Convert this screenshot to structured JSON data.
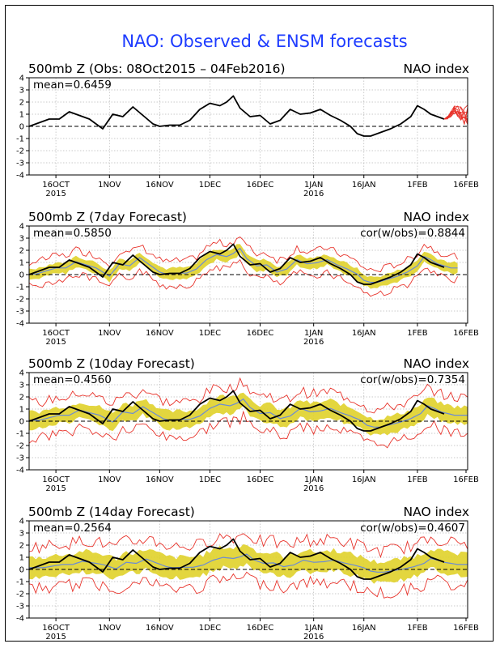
{
  "main_title": "NAO: Observed & ENSM forecasts",
  "colors": {
    "title": "#1e3cff",
    "observed": "#000000",
    "ensemble": "#e0d22a",
    "spread": "#e8342c",
    "ens_mean": "#6b8bd6"
  },
  "chart_data": [
    {
      "type": "line",
      "title": "500mb Z (Obs: 08Oct2015 – 04Feb2016)",
      "right_label": "NAO index",
      "stat_left": "mean=0.6459",
      "stat_right": "",
      "ylim": [
        -4,
        4
      ],
      "yticks": [
        "4",
        "3",
        "2",
        "1",
        "0",
        "-1",
        "-2",
        "-3",
        "-4"
      ],
      "x_ticks": [
        {
          "label": "16OCT",
          "sub": "2015",
          "day": 8
        },
        {
          "label": "1NOV",
          "sub": "",
          "day": 24
        },
        {
          "label": "16NOV",
          "sub": "",
          "day": 39
        },
        {
          "label": "1DEC",
          "sub": "",
          "day": 54
        },
        {
          "label": "16DEC",
          "sub": "",
          "day": 69
        },
        {
          "label": "1JAN",
          "sub": "2016",
          "day": 85
        },
        {
          "label": "16JAN",
          "sub": "",
          "day": 100
        },
        {
          "label": "1FEB",
          "sub": "",
          "day": 116
        },
        {
          "label": "16FEB",
          "sub": "",
          "day": 131
        }
      ],
      "xlim": [
        0,
        131
      ],
      "observed": [
        [
          0,
          0
        ],
        [
          3,
          0.3
        ],
        [
          6,
          0.6
        ],
        [
          9,
          0.6
        ],
        [
          12,
          1.2
        ],
        [
          15,
          0.9
        ],
        [
          18,
          0.6
        ],
        [
          20,
          0.2
        ],
        [
          22,
          -0.2
        ],
        [
          25,
          1.0
        ],
        [
          28,
          0.8
        ],
        [
          31,
          1.6
        ],
        [
          34,
          0.9
        ],
        [
          37,
          0.2
        ],
        [
          39,
          0.0
        ],
        [
          42,
          0.1
        ],
        [
          45,
          0.1
        ],
        [
          48,
          0.5
        ],
        [
          51,
          1.4
        ],
        [
          54,
          1.9
        ],
        [
          57,
          1.7
        ],
        [
          59,
          2.0
        ],
        [
          61,
          2.5
        ],
        [
          63,
          1.5
        ],
        [
          66,
          0.8
        ],
        [
          69,
          0.9
        ],
        [
          72,
          0.2
        ],
        [
          75,
          0.5
        ],
        [
          78,
          1.4
        ],
        [
          81,
          1.0
        ],
        [
          84,
          1.1
        ],
        [
          87,
          1.4
        ],
        [
          90,
          0.9
        ],
        [
          93,
          0.5
        ],
        [
          96,
          0.0
        ],
        [
          98,
          -0.6
        ],
        [
          100,
          -0.8
        ],
        [
          102,
          -0.8
        ],
        [
          105,
          -0.5
        ],
        [
          108,
          -0.2
        ],
        [
          111,
          0.2
        ],
        [
          114,
          0.8
        ],
        [
          116,
          1.7
        ],
        [
          118,
          1.4
        ],
        [
          120,
          1.0
        ],
        [
          123,
          0.7
        ],
        [
          124,
          0.6
        ]
      ],
      "forecast": {
        "start": 124,
        "end": 131,
        "members": 10,
        "base": [
          0.6,
          0.7,
          1.0,
          1.3,
          1.2,
          1.1,
          0.8,
          0.9
        ]
      }
    },
    {
      "type": "line",
      "title": "500mb Z (7day Forecast)",
      "right_label": "NAO index",
      "stat_left": "mean=0.5850",
      "stat_right": "cor(w/obs)=0.8844",
      "ylim": [
        -4,
        4
      ],
      "yticks": [
        "4",
        "3",
        "2",
        "1",
        "0",
        "-1",
        "-2",
        "-3",
        "-4"
      ],
      "x_ticks": [
        {
          "label": "16OCT",
          "sub": "2015",
          "day": 8
        },
        {
          "label": "1NOV",
          "sub": "",
          "day": 24
        },
        {
          "label": "16NOV",
          "sub": "",
          "day": 39
        },
        {
          "label": "1DEC",
          "sub": "",
          "day": 54
        },
        {
          "label": "16DEC",
          "sub": "",
          "day": 69
        },
        {
          "label": "1JAN",
          "sub": "2016",
          "day": 85
        },
        {
          "label": "16JAN",
          "sub": "",
          "day": 100
        },
        {
          "label": "1FEB",
          "sub": "",
          "day": 116
        },
        {
          "label": "16FEB",
          "sub": "",
          "day": 131
        }
      ],
      "xlim": [
        0,
        131
      ],
      "observed": [
        [
          0,
          0
        ],
        [
          3,
          0.3
        ],
        [
          6,
          0.6
        ],
        [
          9,
          0.6
        ],
        [
          12,
          1.2
        ],
        [
          15,
          0.9
        ],
        [
          18,
          0.6
        ],
        [
          20,
          0.2
        ],
        [
          22,
          -0.2
        ],
        [
          25,
          1.0
        ],
        [
          28,
          0.8
        ],
        [
          31,
          1.6
        ],
        [
          34,
          0.9
        ],
        [
          37,
          0.2
        ],
        [
          39,
          0.0
        ],
        [
          42,
          0.1
        ],
        [
          45,
          0.1
        ],
        [
          48,
          0.5
        ],
        [
          51,
          1.4
        ],
        [
          54,
          1.9
        ],
        [
          57,
          1.7
        ],
        [
          59,
          2.0
        ],
        [
          61,
          2.5
        ],
        [
          63,
          1.5
        ],
        [
          66,
          0.8
        ],
        [
          69,
          0.9
        ],
        [
          72,
          0.2
        ],
        [
          75,
          0.5
        ],
        [
          78,
          1.4
        ],
        [
          81,
          1.0
        ],
        [
          84,
          1.1
        ],
        [
          87,
          1.4
        ],
        [
          90,
          0.9
        ],
        [
          93,
          0.5
        ],
        [
          96,
          0.0
        ],
        [
          98,
          -0.6
        ],
        [
          100,
          -0.8
        ],
        [
          102,
          -0.8
        ],
        [
          105,
          -0.5
        ],
        [
          108,
          -0.2
        ],
        [
          111,
          0.2
        ],
        [
          114,
          0.8
        ],
        [
          116,
          1.7
        ],
        [
          118,
          1.4
        ],
        [
          120,
          1.0
        ],
        [
          123,
          0.7
        ],
        [
          124,
          0.6
        ]
      ],
      "ensemble": {
        "start": 0,
        "end": 128,
        "lag": 2,
        "damp": 0.85,
        "band": 0.45,
        "outer": 1.0
      }
    },
    {
      "type": "line",
      "title": "500mb Z (10day Forecast)",
      "right_label": "NAO index",
      "stat_left": "mean=0.4560",
      "stat_right": "cor(w/obs)=0.7354",
      "ylim": [
        -4,
        4
      ],
      "yticks": [
        "4",
        "3",
        "2",
        "1",
        "0",
        "-1",
        "-2",
        "-3",
        "-4"
      ],
      "x_ticks": [
        {
          "label": "16OCT",
          "sub": "2015",
          "day": 8
        },
        {
          "label": "1NOV",
          "sub": "",
          "day": 24
        },
        {
          "label": "16NOV",
          "sub": "",
          "day": 39
        },
        {
          "label": "1DEC",
          "sub": "",
          "day": 54
        },
        {
          "label": "16DEC",
          "sub": "",
          "day": 69
        },
        {
          "label": "1JAN",
          "sub": "2016",
          "day": 85
        },
        {
          "label": "16JAN",
          "sub": "",
          "day": 100
        },
        {
          "label": "1FEB",
          "sub": "",
          "day": 116
        },
        {
          "label": "16FEB",
          "sub": "",
          "day": 131
        }
      ],
      "xlim": [
        0,
        131
      ],
      "observed": [
        [
          0,
          0
        ],
        [
          3,
          0.3
        ],
        [
          6,
          0.6
        ],
        [
          9,
          0.6
        ],
        [
          12,
          1.2
        ],
        [
          15,
          0.9
        ],
        [
          18,
          0.6
        ],
        [
          20,
          0.2
        ],
        [
          22,
          -0.2
        ],
        [
          25,
          1.0
        ],
        [
          28,
          0.8
        ],
        [
          31,
          1.6
        ],
        [
          34,
          0.9
        ],
        [
          37,
          0.2
        ],
        [
          39,
          0.0
        ],
        [
          42,
          0.1
        ],
        [
          45,
          0.1
        ],
        [
          48,
          0.5
        ],
        [
          51,
          1.4
        ],
        [
          54,
          1.9
        ],
        [
          57,
          1.7
        ],
        [
          59,
          2.0
        ],
        [
          61,
          2.5
        ],
        [
          63,
          1.5
        ],
        [
          66,
          0.8
        ],
        [
          69,
          0.9
        ],
        [
          72,
          0.2
        ],
        [
          75,
          0.5
        ],
        [
          78,
          1.4
        ],
        [
          81,
          1.0
        ],
        [
          84,
          1.1
        ],
        [
          87,
          1.4
        ],
        [
          90,
          0.9
        ],
        [
          93,
          0.5
        ],
        [
          96,
          0.0
        ],
        [
          98,
          -0.6
        ],
        [
          100,
          -0.8
        ],
        [
          102,
          -0.8
        ],
        [
          105,
          -0.5
        ],
        [
          108,
          -0.2
        ],
        [
          111,
          0.2
        ],
        [
          114,
          0.8
        ],
        [
          116,
          1.7
        ],
        [
          118,
          1.4
        ],
        [
          120,
          1.0
        ],
        [
          123,
          0.7
        ],
        [
          124,
          0.6
        ]
      ],
      "ensemble": {
        "start": 0,
        "end": 131,
        "lag": 3,
        "damp": 0.7,
        "band": 0.7,
        "outer": 1.45
      }
    },
    {
      "type": "line",
      "title": "500mb Z (14day Forecast)",
      "right_label": "NAO index",
      "stat_left": "mean=0.2564",
      "stat_right": "cor(w/obs)=0.4607",
      "ylim": [
        -4,
        4
      ],
      "yticks": [
        "4",
        "3",
        "2",
        "1",
        "0",
        "-1",
        "-2",
        "-3",
        "-4"
      ],
      "x_ticks": [
        {
          "label": "16OCT",
          "sub": "2015",
          "day": 8
        },
        {
          "label": "1NOV",
          "sub": "",
          "day": 24
        },
        {
          "label": "16NOV",
          "sub": "",
          "day": 39
        },
        {
          "label": "1DEC",
          "sub": "",
          "day": 54
        },
        {
          "label": "16DEC",
          "sub": "",
          "day": 69
        },
        {
          "label": "1JAN",
          "sub": "2016",
          "day": 85
        },
        {
          "label": "16JAN",
          "sub": "",
          "day": 100
        },
        {
          "label": "1FEB",
          "sub": "",
          "day": 116
        },
        {
          "label": "16FEB",
          "sub": "",
          "day": 131
        }
      ],
      "xlim": [
        0,
        131
      ],
      "observed": [
        [
          0,
          0
        ],
        [
          3,
          0.3
        ],
        [
          6,
          0.6
        ],
        [
          9,
          0.6
        ],
        [
          12,
          1.2
        ],
        [
          15,
          0.9
        ],
        [
          18,
          0.6
        ],
        [
          20,
          0.2
        ],
        [
          22,
          -0.2
        ],
        [
          25,
          1.0
        ],
        [
          28,
          0.8
        ],
        [
          31,
          1.6
        ],
        [
          34,
          0.9
        ],
        [
          37,
          0.2
        ],
        [
          39,
          0.0
        ],
        [
          42,
          0.1
        ],
        [
          45,
          0.1
        ],
        [
          48,
          0.5
        ],
        [
          51,
          1.4
        ],
        [
          54,
          1.9
        ],
        [
          57,
          1.7
        ],
        [
          59,
          2.0
        ],
        [
          61,
          2.5
        ],
        [
          63,
          1.5
        ],
        [
          66,
          0.8
        ],
        [
          69,
          0.9
        ],
        [
          72,
          0.2
        ],
        [
          75,
          0.5
        ],
        [
          78,
          1.4
        ],
        [
          81,
          1.0
        ],
        [
          84,
          1.1
        ],
        [
          87,
          1.4
        ],
        [
          90,
          0.9
        ],
        [
          93,
          0.5
        ],
        [
          96,
          0.0
        ],
        [
          98,
          -0.6
        ],
        [
          100,
          -0.8
        ],
        [
          102,
          -0.8
        ],
        [
          105,
          -0.5
        ],
        [
          108,
          -0.2
        ],
        [
          111,
          0.2
        ],
        [
          114,
          0.8
        ],
        [
          116,
          1.7
        ],
        [
          118,
          1.4
        ],
        [
          120,
          1.0
        ],
        [
          123,
          0.7
        ],
        [
          124,
          0.6
        ]
      ],
      "ensemble": {
        "start": 0,
        "end": 131,
        "lag": 4,
        "damp": 0.45,
        "band": 0.85,
        "outer": 1.75
      }
    }
  ]
}
